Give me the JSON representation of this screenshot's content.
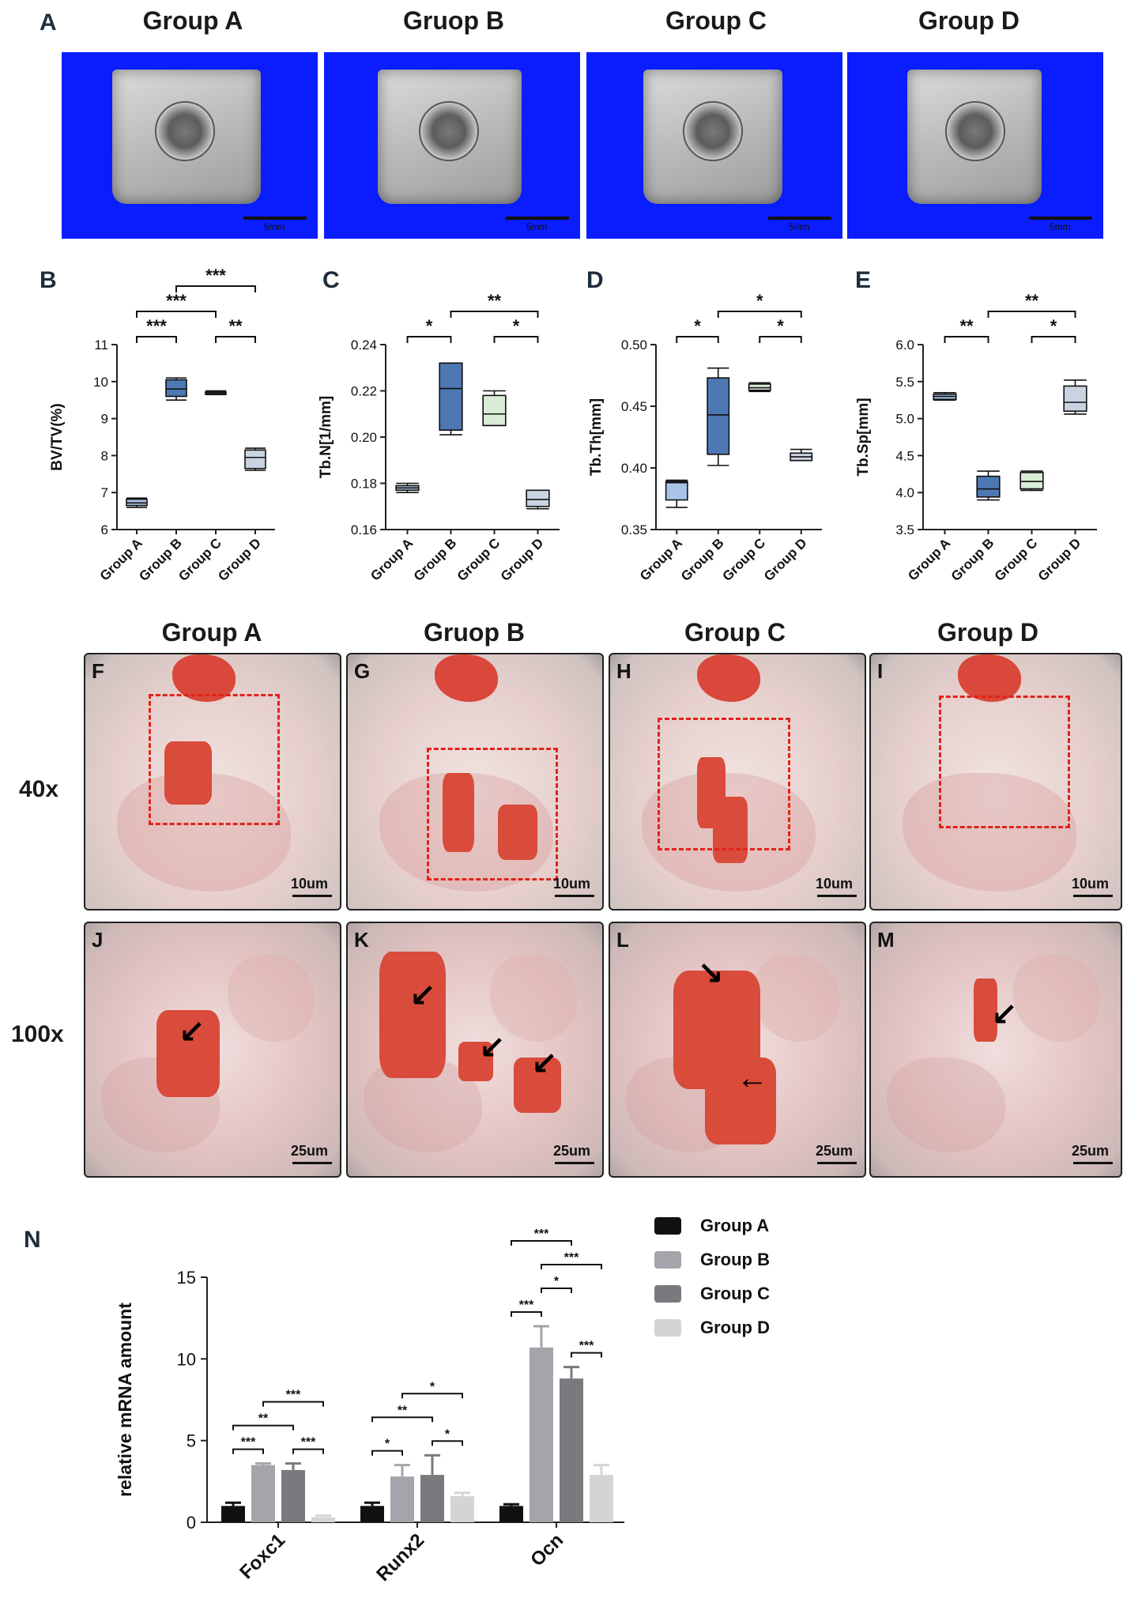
{
  "panel_a": {
    "letter": "A",
    "groups": [
      "Group A",
      "Gruop B",
      "Group C",
      "Group D"
    ],
    "scale_label": "5mm"
  },
  "histology": {
    "groups": [
      "Group A",
      "Gruop B",
      "Group C",
      "Group D"
    ],
    "row40_label": "40x",
    "row100_label": "100x",
    "row40_letters": [
      "F",
      "G",
      "H",
      "I"
    ],
    "row100_letters": [
      "J",
      "K",
      "L",
      "M"
    ],
    "scale40": "10um",
    "scale100": "25um"
  },
  "colors": {
    "ct_background": "#0a1dff",
    "box_fill_dark": "#4d78b2",
    "box_fill_light": "#a9c3e6",
    "box_fill_green": "#d9ecd6",
    "box_fill_pale": "#c9d3e2",
    "roi_dash": "#e2231a",
    "bone_stain": "#d94b3a",
    "bar_group_a": "#111111",
    "bar_group_b": "#a4a4aa",
    "bar_group_c": "#7a7a7e",
    "bar_group_d": "#d4d4d6"
  },
  "chart_data": [
    {
      "panel": "B",
      "type": "boxplot",
      "ylabel": "BV/TV(%)",
      "categories": [
        "Group A",
        "Group B",
        "Group C",
        "Group D"
      ],
      "ylim": [
        6,
        11
      ],
      "yticks": [
        "6",
        "7",
        "8",
        "9",
        "10",
        "11"
      ],
      "boxes": [
        {
          "min": 6.6,
          "q1": 6.65,
          "median": 6.72,
          "q3": 6.82,
          "max": 6.85,
          "fill": "light"
        },
        {
          "min": 9.5,
          "q1": 9.6,
          "median": 9.8,
          "q3": 10.05,
          "max": 10.1,
          "fill": "dark"
        },
        {
          "min": 9.65,
          "q1": 9.66,
          "median": 9.7,
          "q3": 9.72,
          "max": 9.75,
          "fill": "dark"
        },
        {
          "min": 7.6,
          "q1": 7.65,
          "median": 7.95,
          "q3": 8.15,
          "max": 8.2,
          "fill": "pale"
        }
      ],
      "significance": [
        {
          "from": 0,
          "to": 1,
          "label": "***",
          "level": 0
        },
        {
          "from": 0,
          "to": 2,
          "label": "***",
          "level": 1
        },
        {
          "from": 1,
          "to": 3,
          "label": "***",
          "level": 2
        },
        {
          "from": 2,
          "to": 3,
          "label": "**",
          "level": 0
        }
      ]
    },
    {
      "panel": "C",
      "type": "boxplot",
      "ylabel": "Tb.N[1/mm]",
      "categories": [
        "Group A",
        "Group B",
        "Group C",
        "Group D"
      ],
      "ylim": [
        0.16,
        0.24
      ],
      "yticks": [
        "0.16",
        "0.18",
        "0.20",
        "0.22",
        "0.24"
      ],
      "boxes": [
        {
          "min": 0.176,
          "q1": 0.177,
          "median": 0.178,
          "q3": 0.179,
          "max": 0.18,
          "fill": "light"
        },
        {
          "min": 0.201,
          "q1": 0.203,
          "median": 0.221,
          "q3": 0.232,
          "max": 0.232,
          "fill": "dark"
        },
        {
          "min": 0.205,
          "q1": 0.205,
          "median": 0.21,
          "q3": 0.218,
          "max": 0.22,
          "fill": "green"
        },
        {
          "min": 0.169,
          "q1": 0.17,
          "median": 0.173,
          "q3": 0.177,
          "max": 0.177,
          "fill": "pale"
        }
      ],
      "significance": [
        {
          "from": 0,
          "to": 1,
          "label": "*",
          "level": 0
        },
        {
          "from": 1,
          "to": 3,
          "label": "**",
          "level": 1
        },
        {
          "from": 2,
          "to": 3,
          "label": "*",
          "level": 0
        }
      ]
    },
    {
      "panel": "D",
      "type": "boxplot",
      "ylabel": "Tb.Th[mm]",
      "categories": [
        "Group A",
        "Group B",
        "Group C",
        "Group D"
      ],
      "ylim": [
        0.35,
        0.5
      ],
      "yticks": [
        "0.35",
        "0.40",
        "0.45",
        "0.50"
      ],
      "boxes": [
        {
          "min": 0.368,
          "q1": 0.374,
          "median": 0.388,
          "q3": 0.389,
          "max": 0.39,
          "fill": "light"
        },
        {
          "min": 0.402,
          "q1": 0.411,
          "median": 0.443,
          "q3": 0.473,
          "max": 0.481,
          "fill": "dark"
        },
        {
          "min": 0.462,
          "q1": 0.463,
          "median": 0.465,
          "q3": 0.468,
          "max": 0.469,
          "fill": "green"
        },
        {
          "min": 0.406,
          "q1": 0.406,
          "median": 0.409,
          "q3": 0.412,
          "max": 0.415,
          "fill": "pale"
        }
      ],
      "significance": [
        {
          "from": 0,
          "to": 1,
          "label": "*",
          "level": 0
        },
        {
          "from": 1,
          "to": 3,
          "label": "*",
          "level": 1
        },
        {
          "from": 2,
          "to": 3,
          "label": "*",
          "level": 0
        }
      ]
    },
    {
      "panel": "E",
      "type": "boxplot",
      "ylabel": "Tb.Sp[mm]",
      "categories": [
        "Group A",
        "Group B",
        "Group C",
        "Group D"
      ],
      "ylim": [
        3.5,
        6.0
      ],
      "yticks": [
        "3.5",
        "4.0",
        "4.5",
        "5.0",
        "5.5",
        "6.0"
      ],
      "boxes": [
        {
          "min": 5.25,
          "q1": 5.26,
          "median": 5.3,
          "q3": 5.33,
          "max": 5.35,
          "fill": "light"
        },
        {
          "min": 3.9,
          "q1": 3.94,
          "median": 4.05,
          "q3": 4.22,
          "max": 4.29,
          "fill": "dark"
        },
        {
          "min": 4.03,
          "q1": 4.05,
          "median": 4.15,
          "q3": 4.27,
          "max": 4.29,
          "fill": "green"
        },
        {
          "min": 5.06,
          "q1": 5.1,
          "median": 5.22,
          "q3": 5.44,
          "max": 5.52,
          "fill": "pale"
        }
      ],
      "significance": [
        {
          "from": 0,
          "to": 1,
          "label": "**",
          "level": 0
        },
        {
          "from": 1,
          "to": 3,
          "label": "**",
          "level": 1
        },
        {
          "from": 2,
          "to": 3,
          "label": "*",
          "level": 0
        }
      ]
    },
    {
      "panel": "N",
      "type": "bar",
      "ylabel": "relative mRNA amount",
      "categories": [
        "Foxc1",
        "Runx2",
        "Ocn"
      ],
      "ylim": [
        0,
        15
      ],
      "yticks": [
        "0",
        "5",
        "10",
        "15"
      ],
      "series": [
        {
          "name": "Group A",
          "values": [
            1.0,
            1.0,
            1.0
          ],
          "errors": [
            0.2,
            0.2,
            0.1
          ]
        },
        {
          "name": "Group B",
          "values": [
            3.5,
            2.8,
            10.7
          ],
          "errors": [
            0.1,
            0.7,
            1.3
          ]
        },
        {
          "name": "Group C",
          "values": [
            3.2,
            2.9,
            8.8
          ],
          "errors": [
            0.4,
            1.2,
            0.7
          ]
        },
        {
          "name": "Group D",
          "values": [
            0.3,
            1.6,
            2.9
          ],
          "errors": [
            0.1,
            0.2,
            0.6
          ]
        }
      ],
      "significance": [
        {
          "cat": 0,
          "from": 0,
          "to": 1,
          "label": "***",
          "level": 0
        },
        {
          "cat": 0,
          "from": 0,
          "to": 2,
          "label": "**",
          "level": 1
        },
        {
          "cat": 0,
          "from": 1,
          "to": 3,
          "label": "***",
          "level": 2
        },
        {
          "cat": 0,
          "from": 2,
          "to": 3,
          "label": "***",
          "level": 0
        },
        {
          "cat": 1,
          "from": 0,
          "to": 1,
          "label": "*",
          "level": 0
        },
        {
          "cat": 1,
          "from": 0,
          "to": 2,
          "label": "**",
          "level": 1
        },
        {
          "cat": 1,
          "from": 1,
          "to": 3,
          "label": "*",
          "level": 2
        },
        {
          "cat": 1,
          "from": 2,
          "to": 3,
          "label": "*",
          "level": 0
        },
        {
          "cat": 2,
          "from": 0,
          "to": 1,
          "label": "***",
          "level": 0
        },
        {
          "cat": 2,
          "from": 1,
          "to": 2,
          "label": "*",
          "level": 1
        },
        {
          "cat": 2,
          "from": 1,
          "to": 3,
          "label": "***",
          "level": 2
        },
        {
          "cat": 2,
          "from": 0,
          "to": 2,
          "label": "***",
          "level": 3
        },
        {
          "cat": 2,
          "from": 2,
          "to": 3,
          "label": "***",
          "level": 0
        }
      ]
    }
  ]
}
